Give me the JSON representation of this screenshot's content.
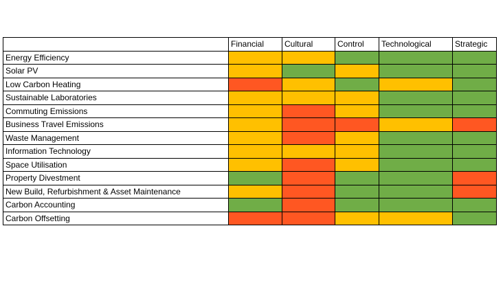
{
  "chart_data": {
    "type": "table",
    "columns": [
      "Financial",
      "Cultural",
      "Control",
      "Technological",
      "Strategic"
    ],
    "rows": [
      {
        "label": "Energy Efficiency",
        "ratings": [
          "amber",
          "amber",
          "green",
          "green",
          "green"
        ]
      },
      {
        "label": "Solar PV",
        "ratings": [
          "amber",
          "green",
          "amber",
          "green",
          "green"
        ]
      },
      {
        "label": "Low Carbon Heating",
        "ratings": [
          "red",
          "amber",
          "green",
          "amber",
          "green"
        ]
      },
      {
        "label": "Sustainable Laboratories",
        "ratings": [
          "amber",
          "amber",
          "amber",
          "green",
          "green"
        ]
      },
      {
        "label": "Commuting Emissions",
        "ratings": [
          "amber",
          "red",
          "amber",
          "green",
          "green"
        ]
      },
      {
        "label": "Business Travel Emissions",
        "ratings": [
          "amber",
          "red",
          "red",
          "amber",
          "red"
        ]
      },
      {
        "label": "Waste Management",
        "ratings": [
          "amber",
          "red",
          "amber",
          "green",
          "green"
        ]
      },
      {
        "label": "Information Technology",
        "ratings": [
          "amber",
          "amber",
          "amber",
          "green",
          "green"
        ]
      },
      {
        "label": "Space Utilisation",
        "ratings": [
          "amber",
          "red",
          "amber",
          "green",
          "green"
        ]
      },
      {
        "label": "Property Divestment",
        "ratings": [
          "green",
          "red",
          "green",
          "green",
          "red"
        ]
      },
      {
        "label": "New Build, Refurbishment & Asset Maintenance",
        "ratings": [
          "amber",
          "red",
          "green",
          "green",
          "red"
        ]
      },
      {
        "label": "Carbon Accounting",
        "ratings": [
          "green",
          "red",
          "green",
          "green",
          "green"
        ]
      },
      {
        "label": "Carbon Offsetting",
        "ratings": [
          "red",
          "red",
          "amber",
          "amber",
          "green"
        ]
      }
    ],
    "colors": {
      "green": "#70ad47",
      "amber": "#ffc000",
      "red": "#ff5722"
    }
  }
}
